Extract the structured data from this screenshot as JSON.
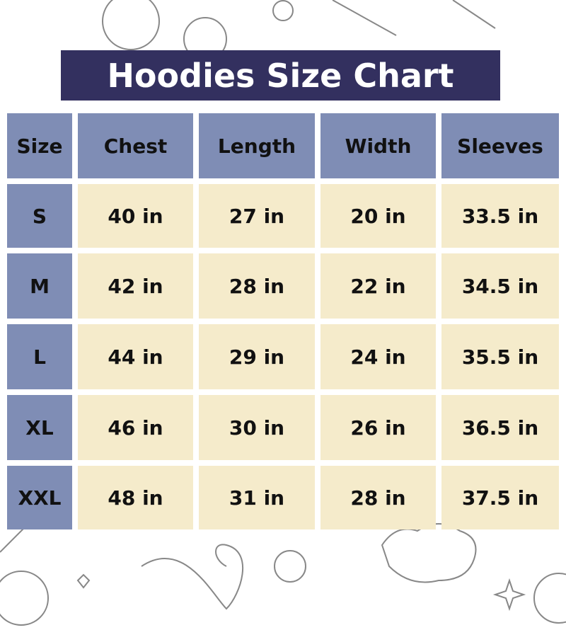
{
  "title": "Hoodies Size Chart",
  "colors": {
    "title_bg": "#33305f",
    "header_bg": "#7f8db5",
    "cell_bg": "#f5ebcb"
  },
  "chart_data": {
    "type": "table",
    "title": "Hoodies Size Chart",
    "columns": [
      "Size",
      "Chest",
      "Length",
      "Width",
      "Sleeves"
    ],
    "rows": [
      [
        "S",
        "40 in",
        "27 in",
        "20 in",
        "33.5 in"
      ],
      [
        "M",
        "42 in",
        "28 in",
        "22 in",
        "34.5 in"
      ],
      [
        "L",
        "44 in",
        "29 in",
        "24 in",
        "35.5 in"
      ],
      [
        "XL",
        "46 in",
        "30 in",
        "26 in",
        "36.5 in"
      ],
      [
        "XXL",
        "48 in",
        "31 in",
        "28 in",
        "37.5 in"
      ]
    ]
  }
}
